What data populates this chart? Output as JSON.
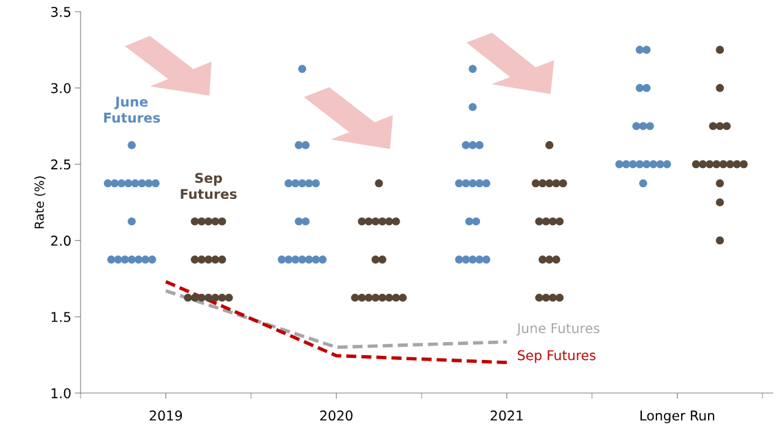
{
  "chart_data": {
    "type": "scatter",
    "ylabel": "Rate (%)",
    "categories": [
      "2019",
      "2020",
      "2021",
      "Longer Run"
    ],
    "ylim": [
      1.0,
      3.5
    ],
    "yticks": [
      {
        "value": 1.0,
        "label": "1.0"
      },
      {
        "value": 1.5,
        "label": "1.5"
      },
      {
        "value": 2.0,
        "label": "2.0"
      },
      {
        "value": 2.5,
        "label": "2.5"
      },
      {
        "value": 3.0,
        "label": "3.0"
      },
      {
        "value": 3.5,
        "label": "3.5"
      }
    ],
    "grid": false,
    "legend": false,
    "marker": "circle",
    "series": [
      {
        "name": "June\nFutures",
        "color": "#5b8bbd",
        "values": [
          2.625,
          3.125,
          3.125,
          3.25
        ]
      },
      {
        "color": "#5b8bbd",
        "values": [
          2.375,
          2.625,
          2.875,
          3.25
        ]
      },
      {
        "color": "#5b8bbd",
        "values": [
          2.375,
          2.625,
          2.625,
          3.0
        ]
      },
      {
        "color": "#5b8bbd",
        "values": [
          2.375,
          2.375,
          2.625,
          3.0
        ]
      },
      {
        "color": "#5b8bbd",
        "values": [
          2.375,
          2.375,
          2.625,
          2.75
        ]
      },
      {
        "color": "#5b8bbd",
        "values": [
          2.375,
          2.375,
          2.375,
          2.75
        ]
      },
      {
        "color": "#5b8bbd",
        "values": [
          2.375,
          2.375,
          2.375,
          2.75
        ]
      },
      {
        "color": "#5b8bbd",
        "values": [
          2.375,
          2.375,
          2.375,
          2.5
        ]
      },
      {
        "color": "#5b8bbd",
        "values": [
          2.375,
          2.125,
          2.375,
          2.5
        ]
      },
      {
        "color": "#5b8bbd",
        "values": [
          2.125,
          2.125,
          2.375,
          2.5
        ]
      },
      {
        "color": "#5b8bbd",
        "values": [
          1.875,
          1.875,
          2.125,
          2.5
        ]
      },
      {
        "color": "#5b8bbd",
        "values": [
          1.875,
          1.875,
          2.125,
          2.5
        ]
      },
      {
        "color": "#5b8bbd",
        "values": [
          1.875,
          1.875,
          1.875,
          2.5
        ]
      },
      {
        "color": "#5b8bbd",
        "values": [
          1.875,
          1.875,
          1.875,
          2.5
        ]
      },
      {
        "color": "#5b8bbd",
        "values": [
          1.875,
          1.875,
          1.875,
          2.5
        ]
      },
      {
        "color": "#5b8bbd",
        "values": [
          1.875,
          1.875,
          1.875,
          2.375
        ]
      },
      {
        "color": "#5b8bbd",
        "values": [
          1.875,
          1.875,
          1.875,
          null
        ]
      },
      {
        "name": "Sep\nFutures",
        "color": "#574536",
        "values": [
          2.125,
          2.375,
          2.625,
          3.25
        ]
      },
      {
        "color": "#574536",
        "values": [
          2.125,
          2.125,
          2.375,
          3.0
        ]
      },
      {
        "color": "#574536",
        "values": [
          2.125,
          2.125,
          2.375,
          2.75
        ]
      },
      {
        "color": "#574536",
        "values": [
          2.125,
          2.125,
          2.375,
          2.75
        ]
      },
      {
        "color": "#574536",
        "values": [
          2.125,
          2.125,
          2.375,
          2.75
        ]
      },
      {
        "color": "#574536",
        "values": [
          1.875,
          2.125,
          2.375,
          2.5
        ]
      },
      {
        "color": "#574536",
        "values": [
          1.875,
          2.125,
          2.125,
          2.5
        ]
      },
      {
        "color": "#574536",
        "values": [
          1.875,
          1.875,
          2.125,
          2.5
        ]
      },
      {
        "color": "#574536",
        "values": [
          1.875,
          1.875,
          2.125,
          2.5
        ]
      },
      {
        "color": "#574536",
        "values": [
          1.875,
          1.625,
          2.125,
          2.5
        ]
      },
      {
        "color": "#574536",
        "values": [
          1.625,
          1.625,
          1.875,
          2.5
        ]
      },
      {
        "color": "#574536",
        "values": [
          1.625,
          1.625,
          1.875,
          2.5
        ]
      },
      {
        "color": "#574536",
        "values": [
          1.625,
          1.625,
          1.875,
          2.5
        ]
      },
      {
        "color": "#574536",
        "values": [
          1.625,
          1.625,
          1.625,
          2.375
        ]
      },
      {
        "color": "#574536",
        "values": [
          1.625,
          1.625,
          1.625,
          2.25
        ]
      },
      {
        "color": "#574536",
        "values": [
          1.625,
          1.625,
          1.625,
          2.0
        ]
      },
      {
        "color": "#574536",
        "values": [
          1.625,
          1.625,
          1.625,
          null
        ]
      },
      {
        "name": "June Futures",
        "type": "line",
        "marker": "none",
        "line_style": "dashed",
        "color": "#a6a6a6",
        "values": [
          1.67,
          1.3,
          1.335,
          null
        ]
      },
      {
        "name": "Sep Futures",
        "type": "line",
        "marker": "none",
        "line_style": "dashed",
        "color": "#c00000",
        "values": [
          1.73,
          1.245,
          1.2,
          null
        ]
      }
    ]
  }
}
